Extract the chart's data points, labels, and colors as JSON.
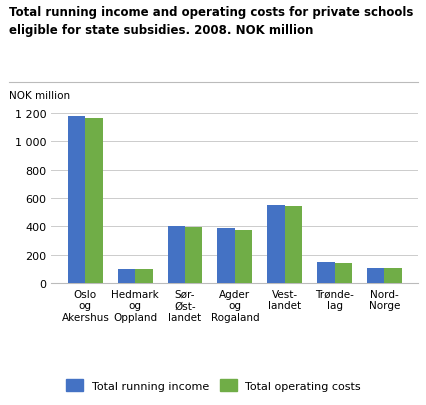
{
  "title": "Total running income and operating costs for private schools\neligible for state subsidies. 2008. NOK million",
  "ylabel": "NOK million",
  "categories": [
    "Oslo\nog\nAkershus",
    "Hedmark\nog\nOppland",
    "Sør-\nØst-\nlandet",
    "Agder\nog\nRogaland",
    "Vest-\nlandet",
    "Trønde-\nlag",
    "Nord-\nNorge"
  ],
  "income": [
    1175,
    100,
    400,
    385,
    548,
    150,
    108
  ],
  "costs": [
    1165,
    97,
    398,
    372,
    540,
    145,
    105
  ],
  "income_color": "#4472C4",
  "costs_color": "#70AD47",
  "ylim": [
    0,
    1300
  ],
  "yticks": [
    0,
    200,
    400,
    600,
    800,
    1000,
    1200
  ],
  "ytick_labels": [
    "0",
    "200",
    "400",
    "600",
    "800",
    "1 000",
    "1 200"
  ],
  "legend_income": "Total running income",
  "legend_costs": "Total operating costs",
  "bar_width": 0.35,
  "bg_color": "#ffffff",
  "grid_color": "#cccccc"
}
